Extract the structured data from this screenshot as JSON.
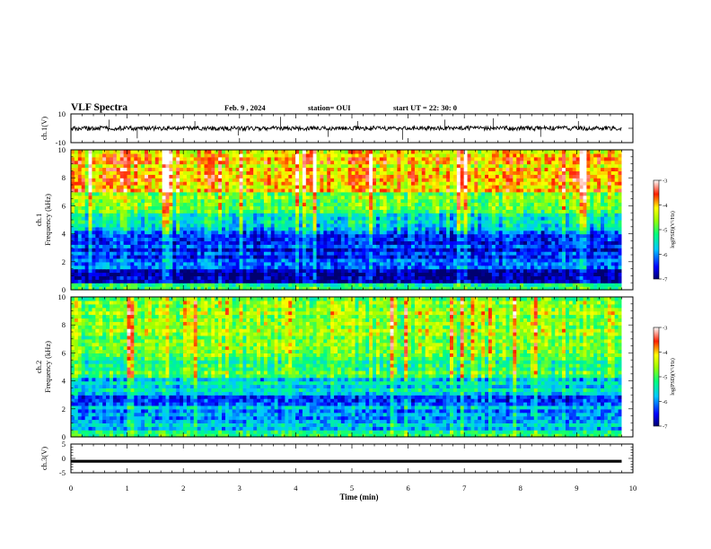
{
  "header": {
    "title": "VLF Spectra",
    "date": "Feb. 9 , 2024",
    "station": "station= OUI",
    "start": "start UT =  22: 30: 0"
  },
  "chart_data": [
    {
      "id": "ch1-waveform",
      "type": "line",
      "title": "",
      "ylabel": "ch.1(V)",
      "ylim": [
        -10,
        10
      ],
      "y_ticks": [
        "10",
        "-10"
      ],
      "xlim": [
        0,
        10
      ],
      "baseline_v": 0,
      "amplitude_v": 1.5,
      "spikes_v": [
        6,
        -7,
        5,
        -5,
        8,
        -6,
        5,
        -8,
        6,
        7,
        -6,
        5
      ]
    },
    {
      "id": "ch1-spectrogram",
      "type": "heatmap",
      "ylabel_line1": "ch.1",
      "ylabel_line2": "Frequency (kHz)",
      "ylim": [
        0,
        10
      ],
      "y_ticks": [
        "0",
        "2",
        "4",
        "6",
        "8",
        "10"
      ],
      "xlim": [
        0,
        9.8
      ],
      "colorbar": {
        "label": "log(PSD)(V²/Hz)",
        "range": [
          -7,
          -3
        ],
        "ticks": [
          "-3",
          "-4",
          "-5",
          "-6",
          "-7"
        ]
      }
    },
    {
      "id": "ch2-spectrogram",
      "type": "heatmap",
      "ylabel_line1": "ch.2",
      "ylabel_line2": "Frequency (kHz)",
      "ylim": [
        0,
        10
      ],
      "y_ticks": [
        "0",
        "2",
        "4",
        "6",
        "8",
        "10"
      ],
      "xlim": [
        0,
        9.8
      ],
      "colorbar": {
        "label": "log(PSD)(V²/Hz)",
        "range": [
          -7,
          -3
        ],
        "ticks": [
          "-3",
          "-4",
          "-5",
          "-6",
          "-7"
        ]
      }
    },
    {
      "id": "ch3-waveform",
      "type": "line",
      "ylabel": "ch.3(V)",
      "ylim": [
        -5,
        5
      ],
      "y_ticks": [
        "5",
        "0",
        "-5"
      ],
      "xlim": [
        0,
        10
      ],
      "level_v": -1
    }
  ],
  "x_axis": {
    "label": "Time (min)",
    "ticks": [
      "0",
      "1",
      "2",
      "3",
      "4",
      "5",
      "6",
      "7",
      "8",
      "9",
      "10"
    ],
    "range": [
      0,
      10
    ]
  }
}
